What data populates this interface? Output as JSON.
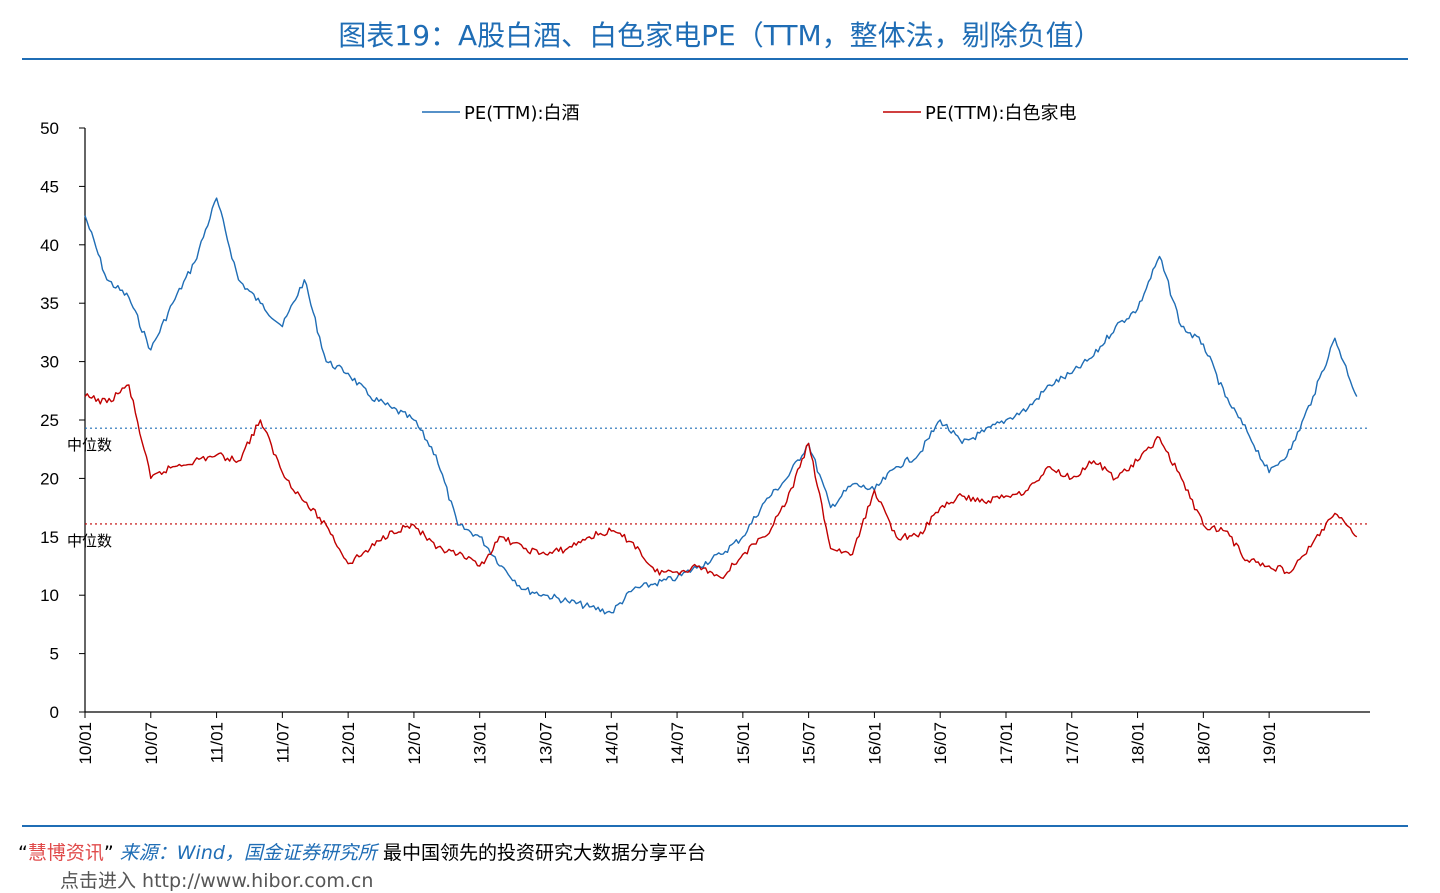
{
  "title": "图表19：A股白酒、白色家电PE（TTM，整体法，剔除负值）",
  "footer": {
    "quote_open": "“",
    "brand": "慧博资讯",
    "quote_close": "”",
    "source_label": "来源：Wind，国金证券研究所",
    "slogan": "最中国领先的投资研究大数据分享平台",
    "link_text": "点击进入 http://www.hibor.com.cn"
  },
  "colors": {
    "baijiu": "#1f6db5",
    "appliance": "#c00000",
    "accent": "#1f6db5"
  },
  "chart_data": {
    "type": "line",
    "title": "",
    "xlabel": "",
    "ylabel": "",
    "ylim": [
      0,
      50
    ],
    "yticks": [
      0,
      5,
      10,
      15,
      20,
      25,
      30,
      35,
      40,
      45,
      50
    ],
    "xticks": [
      "10/01",
      "10/07",
      "11/01",
      "11/07",
      "12/01",
      "12/07",
      "13/01",
      "13/07",
      "14/01",
      "14/07",
      "15/01",
      "15/07",
      "16/01",
      "16/07",
      "17/01",
      "17/07",
      "18/01",
      "18/07",
      "19/01"
    ],
    "legend_position": "top",
    "grid": false,
    "series": [
      {
        "name": "PE(TTM):白酒",
        "color": "#1f6db5",
        "x": [
          "10/01",
          "10/03",
          "10/05",
          "10/07",
          "10/09",
          "10/11",
          "11/01",
          "11/03",
          "11/05",
          "11/07",
          "11/09",
          "11/11",
          "12/01",
          "12/03",
          "12/05",
          "12/07",
          "12/09",
          "12/11",
          "13/01",
          "13/03",
          "13/05",
          "13/07",
          "13/09",
          "13/11",
          "14/01",
          "14/03",
          "14/05",
          "14/07",
          "14/09",
          "14/11",
          "15/01",
          "15/03",
          "15/05",
          "15/07",
          "15/09",
          "15/11",
          "16/01",
          "16/03",
          "16/05",
          "16/07",
          "16/09",
          "16/11",
          "17/01",
          "17/03",
          "17/05",
          "17/07",
          "17/09",
          "17/11",
          "18/01",
          "18/03",
          "18/05",
          "18/07",
          "18/09",
          "18/11",
          "19/01",
          "19/03",
          "19/05",
          "19/07",
          "19/09"
        ],
        "values": [
          42.5,
          37,
          35.5,
          31,
          35,
          38.5,
          44,
          37,
          35,
          33,
          37,
          30,
          29,
          27,
          26,
          25,
          22,
          16,
          15,
          12.5,
          10.5,
          10,
          9.5,
          9,
          8.5,
          10.5,
          11,
          11.5,
          12.5,
          13.5,
          15,
          18,
          20,
          23,
          17.5,
          19.5,
          19,
          21,
          22,
          25,
          23,
          24,
          25,
          26,
          28,
          29,
          30.5,
          33,
          34.5,
          39,
          33,
          31.5,
          27,
          24,
          20.5,
          22.5,
          27,
          32,
          27
        ]
      },
      {
        "name": "PE(TTM):白色家电",
        "color": "#c00000",
        "x": [
          "10/01",
          "10/03",
          "10/05",
          "10/07",
          "10/09",
          "10/11",
          "11/01",
          "11/03",
          "11/05",
          "11/07",
          "11/09",
          "11/11",
          "12/01",
          "12/03",
          "12/05",
          "12/07",
          "12/09",
          "12/11",
          "13/01",
          "13/03",
          "13/05",
          "13/07",
          "13/09",
          "13/11",
          "14/01",
          "14/03",
          "14/05",
          "14/07",
          "14/09",
          "14/11",
          "15/01",
          "15/03",
          "15/05",
          "15/07",
          "15/09",
          "15/11",
          "16/01",
          "16/03",
          "16/05",
          "16/07",
          "16/09",
          "16/11",
          "17/01",
          "17/03",
          "17/05",
          "17/07",
          "17/09",
          "17/11",
          "18/01",
          "18/03",
          "18/05",
          "18/07",
          "18/09",
          "18/11",
          "19/01",
          "19/03",
          "19/05",
          "19/07",
          "19/09"
        ],
        "values": [
          27,
          26.5,
          28,
          20,
          21,
          21.5,
          22,
          21.5,
          25,
          20.5,
          18,
          16,
          12.7,
          14,
          15.5,
          16,
          14,
          13.5,
          12.5,
          15,
          14,
          13.5,
          14,
          15,
          15.5,
          14.5,
          12,
          12,
          12.5,
          11.5,
          13.5,
          15,
          18,
          23,
          14,
          13.5,
          19,
          15,
          15,
          17.5,
          18.5,
          18,
          18.5,
          19,
          21,
          20,
          21.5,
          20,
          21.5,
          23.5,
          20,
          16,
          15.5,
          13,
          12.5,
          12,
          14.5,
          17,
          15
        ]
      }
    ],
    "reference_lines": [
      {
        "label": "中位数",
        "value": 24.3,
        "series": "PE(TTM):白酒",
        "color": "#1f6db5"
      },
      {
        "label": "中位数",
        "value": 16.1,
        "series": "PE(TTM):白色家电",
        "color": "#c00000"
      }
    ]
  }
}
